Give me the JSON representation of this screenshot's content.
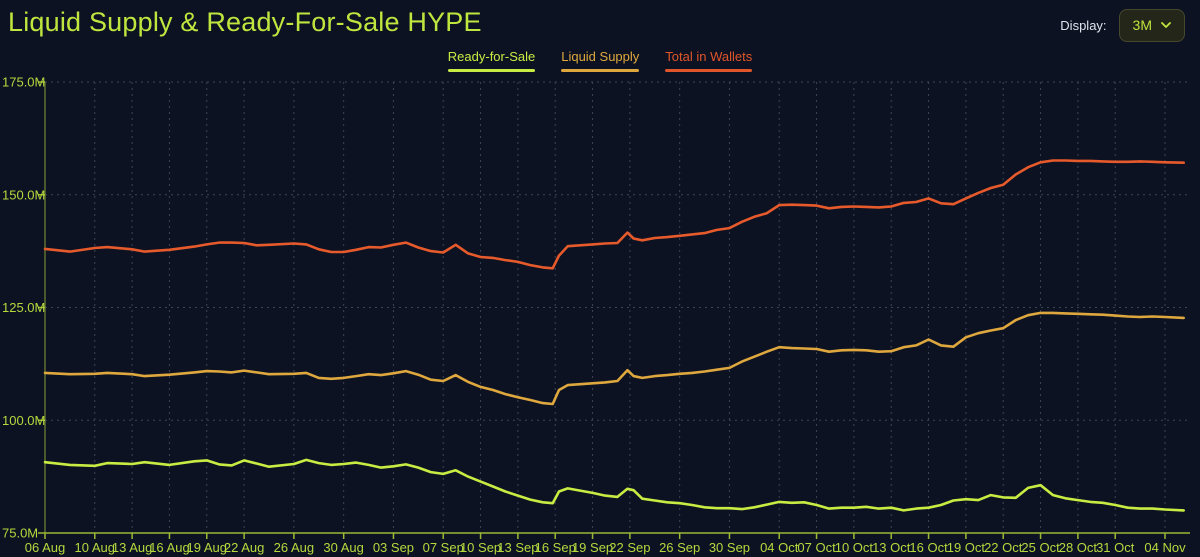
{
  "header": {
    "title": "Liquid Supply & Ready-For-Sale HYPE",
    "display_label": "Display:",
    "range_selected": "3M"
  },
  "legend": [
    {
      "label": "Ready-for-Sale",
      "color": "#c9ec43"
    },
    {
      "label": "Liquid Supply",
      "color": "#dfa83e"
    },
    {
      "label": "Total in Wallets",
      "color": "#e05529"
    }
  ],
  "colors": {
    "background": "#0d1222",
    "title": "#bfe63e",
    "axis_text": "#b4d93e",
    "grid": "#3c4457",
    "y_axis_line": "#5e7030",
    "x_axis_line": "#9ab835"
  },
  "chart_data": {
    "type": "line",
    "title": "Liquid Supply & Ready-For-Sale HYPE",
    "xlabel": "",
    "ylabel": "",
    "grid": true,
    "legend_position": "top-center",
    "ylim": [
      75,
      175
    ],
    "xlim": [
      0,
      92
    ],
    "y_ticks": [
      {
        "value": 75,
        "label": "75.0M"
      },
      {
        "value": 100,
        "label": "100.0M"
      },
      {
        "value": 125,
        "label": "125.0M"
      },
      {
        "value": 150,
        "label": "150.0M"
      },
      {
        "value": 175,
        "label": "175.0M"
      }
    ],
    "x_ticks": [
      {
        "day": 0,
        "label": "06 Aug"
      },
      {
        "day": 4,
        "label": "10 Aug"
      },
      {
        "day": 7,
        "label": "13 Aug"
      },
      {
        "day": 10,
        "label": "16 Aug"
      },
      {
        "day": 13,
        "label": "19 Aug"
      },
      {
        "day": 16,
        "label": "22 Aug"
      },
      {
        "day": 20,
        "label": "26 Aug"
      },
      {
        "day": 24,
        "label": "30 Aug"
      },
      {
        "day": 28,
        "label": "03 Sep"
      },
      {
        "day": 32,
        "label": "07 Sep"
      },
      {
        "day": 35,
        "label": "10 Sep"
      },
      {
        "day": 38,
        "label": "13 Sep"
      },
      {
        "day": 41,
        "label": "16 Sep"
      },
      {
        "day": 44,
        "label": "19 Sep"
      },
      {
        "day": 47,
        "label": "22 Sep"
      },
      {
        "day": 51,
        "label": "26 Sep"
      },
      {
        "day": 55,
        "label": "30 Sep"
      },
      {
        "day": 59,
        "label": "04 Oct"
      },
      {
        "day": 62,
        "label": "07 Oct"
      },
      {
        "day": 65,
        "label": "10 Oct"
      },
      {
        "day": 68,
        "label": "13 Oct"
      },
      {
        "day": 71,
        "label": "16 Oct"
      },
      {
        "day": 74,
        "label": "19 Oct"
      },
      {
        "day": 77,
        "label": "22 Oct"
      },
      {
        "day": 80,
        "label": "25 Oct"
      },
      {
        "day": 83,
        "label": "28 Oct"
      },
      {
        "day": 86,
        "label": "31 Oct"
      },
      {
        "day": 90,
        "label": "04 Nov"
      }
    ],
    "x_days": [
      0,
      2,
      4,
      5,
      7,
      8,
      10,
      12,
      13,
      14,
      15,
      16,
      17,
      18,
      20,
      21,
      22,
      23,
      24,
      25,
      26,
      27,
      28,
      29,
      30,
      31,
      32,
      33,
      34,
      35,
      36,
      37,
      38,
      39,
      40,
      40.8,
      41.3,
      42,
      43,
      44,
      45,
      46,
      46.8,
      47.3,
      48,
      49,
      50,
      51,
      52,
      53,
      54,
      55,
      56,
      57,
      58,
      59,
      60,
      61,
      62,
      63,
      64,
      65,
      66,
      67,
      68,
      69,
      70,
      71,
      72,
      73,
      74,
      75,
      76,
      77,
      78,
      79,
      80,
      81,
      82,
      83,
      84,
      85,
      86,
      87,
      88,
      89,
      90,
      91.5
    ],
    "unit": "M HYPE",
    "series": [
      {
        "name": "Ready-for-Sale",
        "color": "#c9ec43",
        "values": [
          90.7,
          90.1,
          89.9,
          90.5,
          90.3,
          90.7,
          90.1,
          90.9,
          91.1,
          90.2,
          90.0,
          91.1,
          90.4,
          89.7,
          90.3,
          91.2,
          90.5,
          90.1,
          90.3,
          90.6,
          90.1,
          89.5,
          89.8,
          90.2,
          89.5,
          88.5,
          88.1,
          88.9,
          87.5,
          86.4,
          85.3,
          84.2,
          83.3,
          82.4,
          81.8,
          81.6,
          84.2,
          84.9,
          84.4,
          83.9,
          83.3,
          83.0,
          84.8,
          84.5,
          82.6,
          82.2,
          81.8,
          81.6,
          81.2,
          80.7,
          80.5,
          80.5,
          80.3,
          80.7,
          81.3,
          81.9,
          81.7,
          81.8,
          81.2,
          80.4,
          80.6,
          80.6,
          80.8,
          80.4,
          80.6,
          80.0,
          80.4,
          80.6,
          81.2,
          82.2,
          82.5,
          82.3,
          83.4,
          82.9,
          82.8,
          85.0,
          85.6,
          83.4,
          82.7,
          82.3,
          81.9,
          81.7,
          81.2,
          80.6,
          80.4,
          80.4,
          80.2,
          80.0
        ]
      },
      {
        "name": "Liquid Supply",
        "color": "#dfa83e",
        "values": [
          110.5,
          110.2,
          110.3,
          110.5,
          110.2,
          109.8,
          110.1,
          110.6,
          110.9,
          110.8,
          110.6,
          111.0,
          110.6,
          110.2,
          110.3,
          110.5,
          109.4,
          109.2,
          109.4,
          109.8,
          110.2,
          110.0,
          110.4,
          110.9,
          110.1,
          109.0,
          108.7,
          110.0,
          108.5,
          107.4,
          106.7,
          105.8,
          105.1,
          104.5,
          103.8,
          103.6,
          106.7,
          107.8,
          108.0,
          108.2,
          108.4,
          108.7,
          111.1,
          109.8,
          109.4,
          109.8,
          110.0,
          110.3,
          110.5,
          110.8,
          111.2,
          111.6,
          113.0,
          114.1,
          115.2,
          116.2,
          116.0,
          115.9,
          115.8,
          115.2,
          115.5,
          115.6,
          115.5,
          115.2,
          115.3,
          116.2,
          116.6,
          117.9,
          116.6,
          116.3,
          118.4,
          119.3,
          119.9,
          120.4,
          122.2,
          123.3,
          123.8,
          123.8,
          123.7,
          123.6,
          123.5,
          123.4,
          123.2,
          123.0,
          122.9,
          123.0,
          122.9,
          122.7
        ]
      },
      {
        "name": "Total in Wallets",
        "color": "#e65a2b",
        "values": [
          138.0,
          137.4,
          138.2,
          138.4,
          137.9,
          137.4,
          137.8,
          138.5,
          139.0,
          139.4,
          139.4,
          139.3,
          138.8,
          138.9,
          139.2,
          139.0,
          137.9,
          137.3,
          137.3,
          137.8,
          138.4,
          138.3,
          138.9,
          139.4,
          138.3,
          137.5,
          137.2,
          138.9,
          137.0,
          136.2,
          136.0,
          135.5,
          135.1,
          134.4,
          133.9,
          133.7,
          136.5,
          138.6,
          138.8,
          139.0,
          139.2,
          139.3,
          141.6,
          140.3,
          139.9,
          140.4,
          140.6,
          140.9,
          141.2,
          141.5,
          142.2,
          142.6,
          144.0,
          145.1,
          145.9,
          147.7,
          147.8,
          147.7,
          147.6,
          147.0,
          147.3,
          147.4,
          147.3,
          147.2,
          147.4,
          148.2,
          148.4,
          149.2,
          148.1,
          147.9,
          149.2,
          150.4,
          151.5,
          152.2,
          154.5,
          156.1,
          157.2,
          157.6,
          157.6,
          157.5,
          157.5,
          157.4,
          157.3,
          157.3,
          157.4,
          157.3,
          157.2,
          157.1
        ]
      }
    ]
  }
}
